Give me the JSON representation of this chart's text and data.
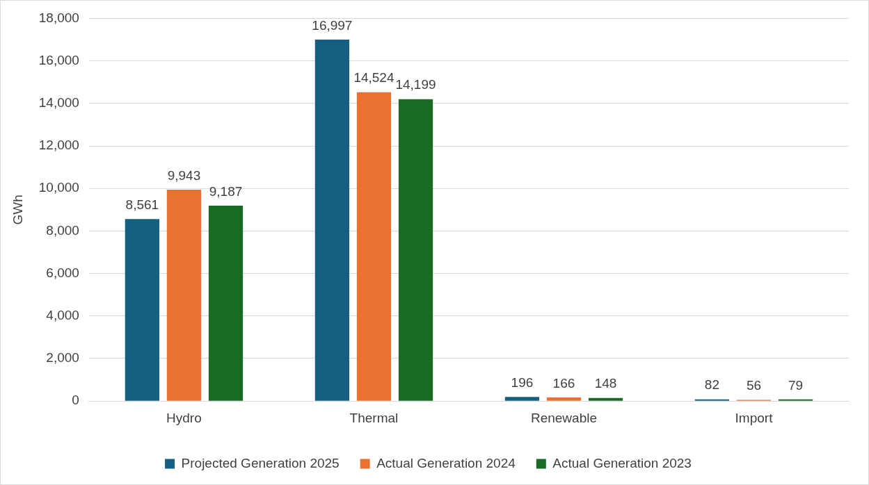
{
  "chart_data": {
    "type": "bar",
    "ylabel": "GWh",
    "categories": [
      "Hydro",
      "Thermal",
      "Renewable",
      "Import"
    ],
    "series": [
      {
        "name": "Projected Generation 2025",
        "color": "#156082",
        "values": [
          8561,
          16997,
          196,
          82
        ],
        "value_labels": [
          "8,561",
          "16,997",
          "196",
          "82"
        ]
      },
      {
        "name": "Actual Generation 2024",
        "color": "#e97132",
        "values": [
          9943,
          14524,
          166,
          56
        ],
        "value_labels": [
          "9,943",
          "14,524",
          "166",
          "56"
        ]
      },
      {
        "name": "Actual Generation 2023",
        "color": "#196b24",
        "values": [
          9187,
          14199,
          148,
          79
        ],
        "value_labels": [
          "9,187",
          "14,199",
          "148",
          "79"
        ]
      }
    ],
    "ylim": [
      0,
      18000
    ],
    "yticks": [
      {
        "value": 0,
        "label": "0"
      },
      {
        "value": 2000,
        "label": "2,000"
      },
      {
        "value": 4000,
        "label": "4,000"
      },
      {
        "value": 6000,
        "label": "6,000"
      },
      {
        "value": 8000,
        "label": "8,000"
      },
      {
        "value": 10000,
        "label": "10,000"
      },
      {
        "value": 12000,
        "label": "12,000"
      },
      {
        "value": 14000,
        "label": "14,000"
      },
      {
        "value": 16000,
        "label": "16,000"
      },
      {
        "value": 18000,
        "label": "18,000"
      }
    ],
    "grid": "y",
    "legend": "bottom"
  }
}
